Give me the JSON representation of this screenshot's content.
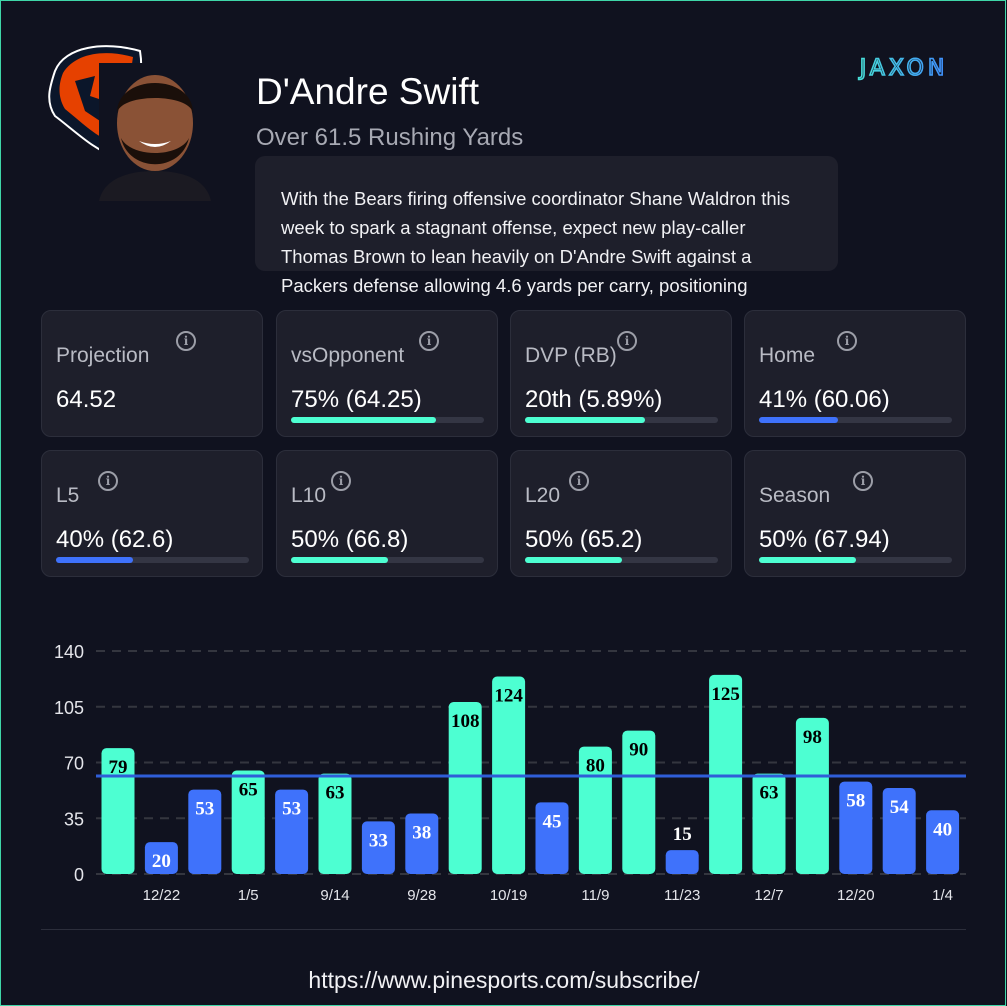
{
  "header": {
    "player_name": "D'Andre Swift",
    "prop": "Over 61.5 Rushing Yards",
    "description": "With the Bears firing offensive coordinator Shane Waldron this week to spark a stagnant offense, expect new play-caller Thomas Brown to lean heavily on D'Andre Swift against a Packers defense allowing 4.6 yards per carry, positioning",
    "brand_logo_text": "JAXON",
    "team_logo": "chicago-bears-logo"
  },
  "colors": {
    "over": "#4dffd2",
    "under": "#3f72fb",
    "line": "#2f5ed8",
    "background": "#10121f"
  },
  "stats": [
    {
      "label": "Projection",
      "value": "64.52"
    },
    {
      "label": "vsOpponent",
      "value": "75% (64.25)",
      "pct": 75,
      "color": "#4dffd2"
    },
    {
      "label": "DVP (RB)",
      "value": "20th (5.89%)",
      "pct": 62,
      "color": "#4dffd2"
    },
    {
      "label": "Home",
      "value": "41% (60.06)",
      "pct": 41,
      "color": "#3f72fb"
    },
    {
      "label": "L5",
      "value": "40% (62.6)",
      "pct": 40,
      "color": "#3f72fb"
    },
    {
      "label": "L10",
      "value": "50% (66.8)",
      "pct": 50,
      "color": "#4dffd2"
    },
    {
      "label": "L20",
      "value": "50% (65.2)",
      "pct": 50,
      "color": "#4dffd2"
    },
    {
      "label": "Season",
      "value": "50% (67.94)",
      "pct": 50,
      "color": "#4dffd2"
    }
  ],
  "chart_data": {
    "type": "bar",
    "values": [
      79,
      20,
      53,
      65,
      53,
      63,
      33,
      38,
      108,
      124,
      45,
      80,
      90,
      15,
      125,
      63,
      98,
      58,
      54,
      40
    ],
    "x_tick_labels": [
      "",
      "12/22",
      "",
      "1/5",
      "",
      "9/14",
      "",
      "9/28",
      "",
      "10/19",
      "",
      "11/9",
      "",
      "11/23",
      "",
      "12/7",
      "",
      "12/20",
      "",
      "1/4"
    ],
    "y_ticks": [
      0,
      35,
      70,
      105,
      140
    ],
    "ylim": [
      0,
      140
    ],
    "line_value": 61.5,
    "grid": "dashed horizontal"
  },
  "footer": {
    "url": "https://www.pinesports.com/subscribe/"
  }
}
